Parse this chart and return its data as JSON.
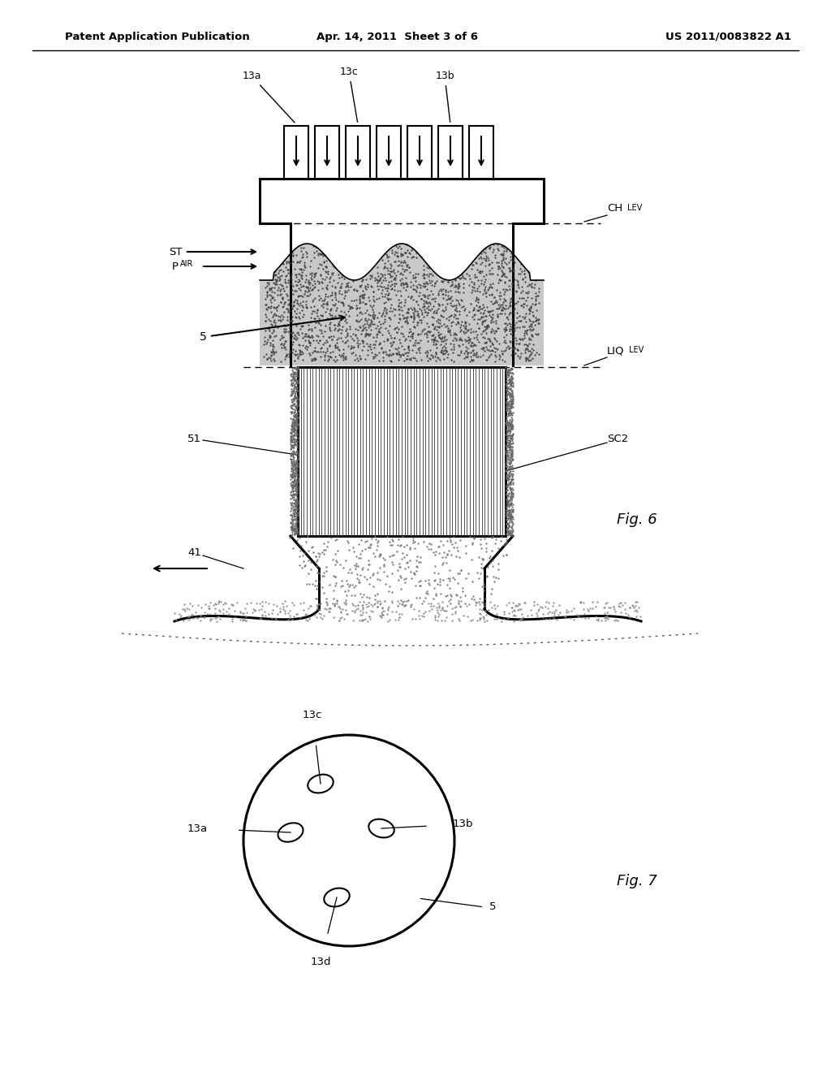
{
  "bg_color": "#ffffff",
  "header_left": "Patent Application Publication",
  "header_mid": "Apr. 14, 2011  Sheet 3 of 6",
  "header_right": "US 2011/0083822 A1",
  "fig6_label": "Fig. 6",
  "fig7_label": "Fig. 7"
}
